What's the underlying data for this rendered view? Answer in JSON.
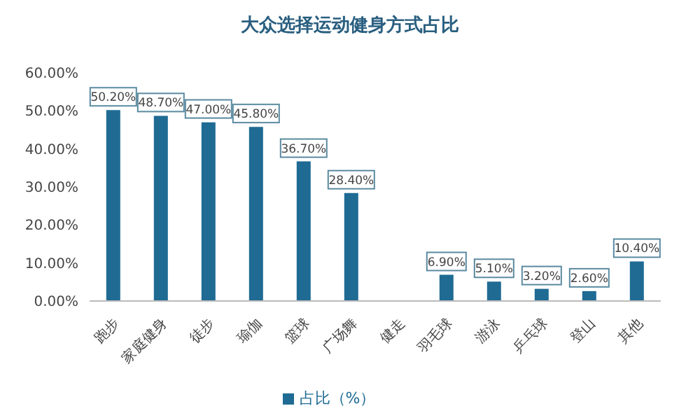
{
  "chart_data": {
    "type": "bar",
    "title": "大众选择运动健身方式占比",
    "categories": [
      "跑步",
      "家庭健身",
      "徒步",
      "瑜伽",
      "篮球",
      "广场舞",
      "健走",
      "羽毛球",
      "游泳",
      "乒乓球",
      "登山",
      "其他"
    ],
    "series": [
      {
        "name": "占比（%）",
        "color": "#1f6b94",
        "values": [
          50.2,
          48.7,
          47.0,
          45.8,
          36.7,
          28.4,
          null,
          6.9,
          5.1,
          3.2,
          2.6,
          10.4
        ],
        "value_labels": [
          "50.20%",
          "48.70%",
          "47.00%",
          "45.80%",
          "36.70%",
          "28.40%",
          null,
          "6.90%",
          "5.10%",
          "3.20%",
          "2.60%",
          "10.40%"
        ]
      }
    ],
    "ylim": [
      0,
      60
    ],
    "yticks": [
      {
        "value": 0,
        "label": "0.00%"
      },
      {
        "value": 10,
        "label": "10.00%"
      },
      {
        "value": 20,
        "label": "20.00%"
      },
      {
        "value": 30,
        "label": "30.00%"
      },
      {
        "value": 40,
        "label": "40.00%"
      },
      {
        "value": 50,
        "label": "50.00%"
      },
      {
        "value": 60,
        "label": "60.00%"
      }
    ],
    "grid": false,
    "legend": "bottom"
  }
}
